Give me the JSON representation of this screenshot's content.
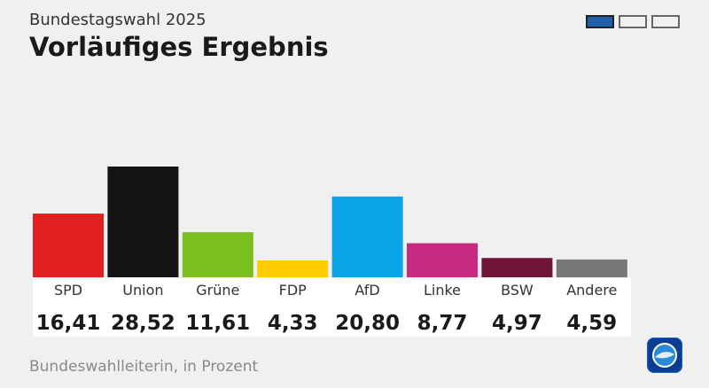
{
  "header": {
    "kicker": "Bundestagswahl 2025",
    "title": "Vorläufiges Ergebnis"
  },
  "pager": {
    "pages": 3,
    "active": 0
  },
  "footer": {
    "source": "Bundeswahlleiterin, in Prozent"
  },
  "chart_data": {
    "type": "bar",
    "categories": [
      "SPD",
      "Union",
      "Grüne",
      "FDP",
      "AfD",
      "Linke",
      "BSW",
      "Andere"
    ],
    "values": [
      16.41,
      28.52,
      11.61,
      4.33,
      20.8,
      8.77,
      4.97,
      4.59
    ],
    "value_labels": [
      "16,41",
      "28,52",
      "11,61",
      "4,33",
      "20,80",
      "8,77",
      "4,97",
      "4,59"
    ],
    "colors": [
      "#e02020",
      "#141414",
      "#78bf1f",
      "#ffcc00",
      "#0aa3e6",
      "#c72a80",
      "#6e1538",
      "#777777"
    ],
    "ylim": [
      0,
      28.52
    ],
    "grid": false,
    "legend": "none"
  }
}
